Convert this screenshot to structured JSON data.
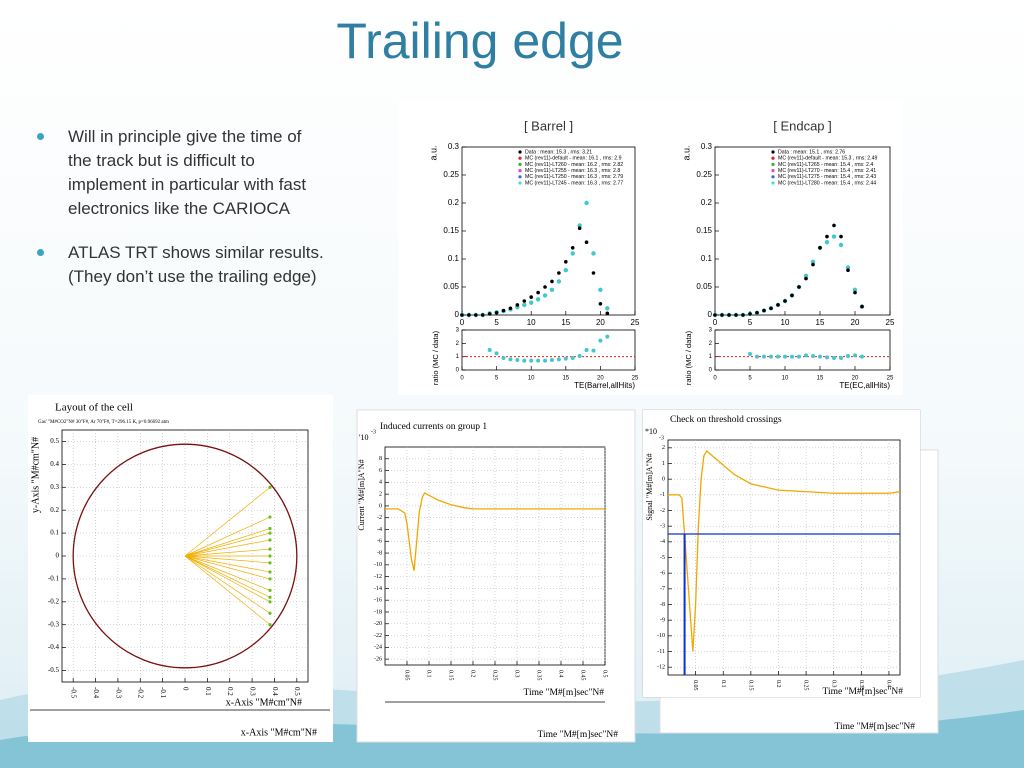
{
  "header": {
    "title": "Trailing edge"
  },
  "bullets": [
    "Will in principle give the time of the track but is difficult to implement in particular with fast electronics like the CARIOCA",
    "ATLAS TRT shows similar results. (They don’t use the trailing edge)"
  ],
  "figures": {
    "barrel": {
      "title": "[ Barrel ]",
      "y_label": "a.u.",
      "ratio_label": "ratio (MC / data)",
      "x_label": "TE(Barrel,allHits)",
      "legend": [
        {
          "label": "Data : mean: 15.3 , rms: 3.21",
          "color": "#000000"
        },
        {
          "label": "MC (rev11)-default - mean: 16.1 , rms: 2.9",
          "color": "#e02020"
        },
        {
          "label": "MC (rev11)-LT260 - mean: 16.2 , rms: 2.82",
          "color": "#20c020"
        },
        {
          "label": "MC (rev11)-LT255 - mean: 16.3 , rms: 2.8",
          "color": "#e040e0"
        },
        {
          "label": "MC (rev11)-LT250 - mean: 16.3 , rms: 2.79",
          "color": "#4060e0"
        },
        {
          "label": "MC (rev11)-LT245 - mean: 16.3 , rms: 2.77",
          "color": "#40e0d0"
        }
      ],
      "xlim": [
        0,
        25
      ],
      "xticks": [
        0,
        5,
        10,
        15,
        20,
        25
      ],
      "ylim": [
        0,
        0.3
      ],
      "yticks": [
        0,
        0.05,
        0.1,
        0.15,
        0.2,
        0.25,
        0.3
      ],
      "ratio_lim": [
        0,
        3
      ],
      "ratio_ticks": [
        0,
        1,
        2,
        3
      ],
      "ratio_ref": 1,
      "mc_color": "#40c8d0",
      "x": [
        0,
        1,
        2,
        3,
        4,
        5,
        6,
        7,
        8,
        9,
        10,
        11,
        12,
        13,
        14,
        15,
        16,
        17,
        18,
        19,
        20,
        21
      ],
      "data": [
        0,
        0,
        0,
        0,
        0.002,
        0.004,
        0.008,
        0.012,
        0.018,
        0.025,
        0.032,
        0.04,
        0.05,
        0.06,
        0.075,
        0.095,
        0.12,
        0.155,
        0.13,
        0.075,
        0.02,
        0.003
      ],
      "mc": [
        0,
        0,
        0,
        0,
        0.003,
        0.005,
        0.007,
        0.01,
        0.014,
        0.018,
        0.022,
        0.028,
        0.035,
        0.045,
        0.06,
        0.08,
        0.11,
        0.16,
        0.2,
        0.11,
        0.045,
        0.012
      ],
      "ratio": [
        null,
        null,
        null,
        null,
        1.5,
        1.25,
        0.9,
        0.8,
        0.75,
        0.7,
        0.7,
        0.7,
        0.7,
        0.75,
        0.8,
        0.85,
        0.9,
        1.05,
        1.5,
        1.45,
        2.2,
        2.5
      ]
    },
    "endcap": {
      "title": "[ Endcap ]",
      "y_label": "a.u.",
      "ratio_label": "ratio (MC / data)",
      "x_label": "TE(EC,allHits)",
      "legend": [
        {
          "label": "Data : mean: 15.1 , rms: 2.76",
          "color": "#000000"
        },
        {
          "label": "MC (rev11)-default - mean: 15.3 , rms: 2.49",
          "color": "#e02020"
        },
        {
          "label": "MC (rev11)-LT265 - mean: 15.4 , rms: 2.4",
          "color": "#20c020"
        },
        {
          "label": "MC (rev11)-LT270 - mean: 15.4 , rms: 2.41",
          "color": "#e040e0"
        },
        {
          "label": "MC (rev11)-LT275 - mean: 15.4 , rms: 2.43",
          "color": "#4060e0"
        },
        {
          "label": "MC (rev11)-LT280 - mean: 15.4 , rms: 2.44",
          "color": "#40e0d0"
        }
      ],
      "xlim": [
        0,
        25
      ],
      "xticks": [
        0,
        5,
        10,
        15,
        20,
        25
      ],
      "ylim": [
        0,
        0.3
      ],
      "yticks": [
        0,
        0.05,
        0.1,
        0.15,
        0.2,
        0.25,
        0.3
      ],
      "ratio_lim": [
        0,
        3
      ],
      "ratio_ticks": [
        0,
        1,
        2,
        3
      ],
      "ratio_ref": 1,
      "mc_color": "#40c8d0",
      "x": [
        0,
        1,
        2,
        3,
        4,
        5,
        6,
        7,
        8,
        9,
        10,
        11,
        12,
        13,
        14,
        15,
        16,
        17,
        18,
        19,
        20,
        21
      ],
      "data": [
        0,
        0,
        0,
        0,
        0,
        0.002,
        0.004,
        0.008,
        0.012,
        0.018,
        0.025,
        0.035,
        0.05,
        0.065,
        0.09,
        0.12,
        0.14,
        0.16,
        0.14,
        0.08,
        0.04,
        0.015
      ],
      "mc": [
        0,
        0,
        0,
        0,
        0,
        0.002,
        0.004,
        0.008,
        0.012,
        0.018,
        0.025,
        0.035,
        0.05,
        0.07,
        0.095,
        0.12,
        0.13,
        0.14,
        0.125,
        0.085,
        0.045,
        0.015
      ],
      "ratio": [
        null,
        null,
        null,
        null,
        null,
        1.2,
        1,
        1,
        1,
        1,
        1,
        1,
        1,
        1.1,
        1.05,
        1,
        0.95,
        0.9,
        0.9,
        1.05,
        1.1,
        1
      ]
    },
    "cell": {
      "title": "Layout of the cell",
      "subtitle": "Gas' \"M#CO2\"N# 30\"F#, Ar 70\"F#, T=296.15 K, p=0.96692 atm",
      "y_label": "y-Axis \"M#cm\"N#",
      "x_label": "x-Axis \"M#cm\"N#",
      "xlim": [
        -0.55,
        0.55
      ],
      "ylim": [
        -0.55,
        0.55
      ],
      "xticks": [
        -0.5,
        -0.4,
        -0.3,
        -0.2,
        -0.1,
        0,
        0.1,
        0.2,
        0.3,
        0.4,
        0.5
      ],
      "yticks": [
        -0.5,
        -0.4,
        -0.3,
        -0.2,
        -0.1,
        0,
        0.1,
        0.2,
        0.3,
        0.4,
        0.5
      ],
      "radius": 0.5,
      "wire_x": 0.38,
      "wire_y": [
        0.3,
        0.17,
        0.12,
        0.1,
        0.07,
        0.03,
        0,
        -0.03,
        -0.07,
        -0.1,
        -0.15,
        -0.18,
        -0.2,
        -0.25,
        -0.3
      ]
    },
    "currents": {
      "title": "Induced currents on group 1",
      "multiplier": "'10",
      "exponent": "-3",
      "y_label": "Current \"M#[m]A\"N#",
      "x_label": "Time \"M#[m]sec\"N#",
      "xlim": [
        0,
        0.5
      ],
      "ylim": [
        -27,
        10
      ],
      "xticks": [
        0.05,
        0.1,
        0.15,
        0.2,
        0.25,
        0.3,
        0.35,
        0.4,
        0.45,
        0.5
      ],
      "yticks": [
        8,
        6,
        4,
        2,
        0,
        -2,
        -4,
        -6,
        -8,
        -10,
        -12,
        -14,
        -16,
        -18,
        -20,
        -22,
        -24,
        -26
      ],
      "t": [
        0,
        0.03,
        0.045,
        0.05,
        0.055,
        0.06,
        0.066,
        0.072,
        0.078,
        0.085,
        0.09,
        0.1,
        0.12,
        0.15,
        0.18,
        0.2,
        0.3,
        0.4,
        0.5
      ],
      "values": [
        -0.5,
        -0.5,
        -1.2,
        -3,
        -6,
        -9,
        -11,
        -6,
        -1,
        1.5,
        2.2,
        1.8,
        1,
        0.2,
        -0.3,
        -0.5,
        -0.5,
        -0.5,
        -0.5
      ]
    },
    "threshold": {
      "title": "Check on threshold crossings",
      "multiplier": "*10",
      "exponent": "-3",
      "y_label": "Signal \"M#[m]A\"N#",
      "x_label": "Time \"M#[m]sec\"N#",
      "xlim": [
        0,
        0.42
      ],
      "ylim": [
        -12.5,
        2.5
      ],
      "xticks": [
        0.05,
        0.1,
        0.15,
        0.2,
        0.25,
        0.3,
        0.35,
        0.4
      ],
      "yticks": [
        2,
        1,
        0,
        -1,
        -2,
        -3,
        -4,
        -5,
        -6,
        -7,
        -8,
        -9,
        -10,
        -11,
        -12
      ],
      "threshold": -3.5,
      "crossing": 0.03,
      "t": [
        0,
        0.02,
        0.025,
        0.03,
        0.035,
        0.04,
        0.045,
        0.05,
        0.055,
        0.06,
        0.065,
        0.07,
        0.09,
        0.12,
        0.15,
        0.2,
        0.3,
        0.4,
        0.42
      ],
      "values": [
        -1,
        -1,
        -1.2,
        -3.5,
        -6,
        -8.5,
        -11,
        -8,
        -3,
        0,
        1.5,
        1.8,
        1.2,
        0.3,
        -0.3,
        -0.7,
        -0.9,
        -0.9,
        -0.8
      ]
    }
  }
}
